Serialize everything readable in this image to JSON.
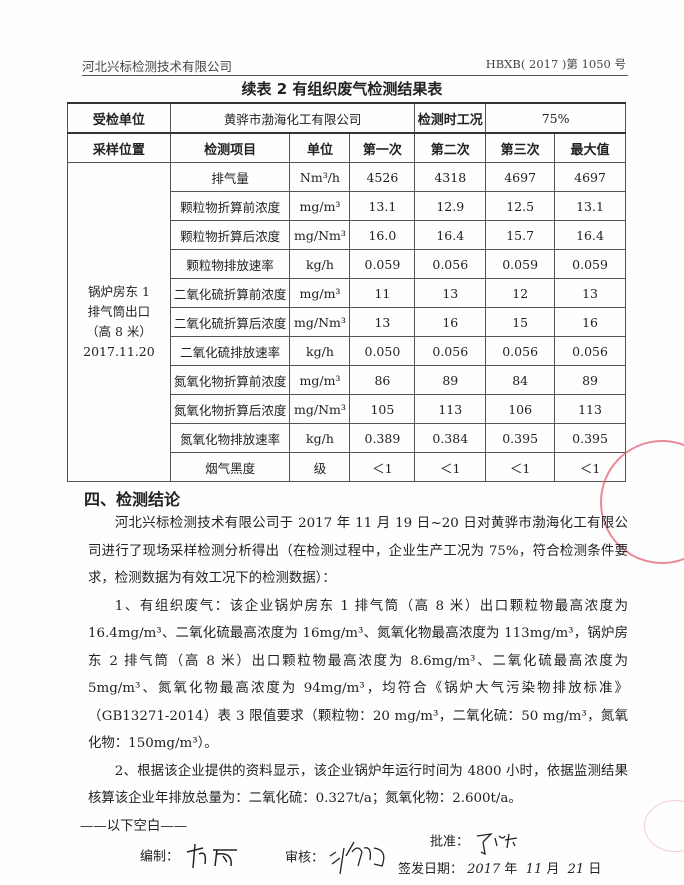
{
  "header": {
    "company": "河北兴标检测技术有限公司",
    "report_no": "HBXB( 2017 )第 1050 号"
  },
  "title": "续表 2   有组织废气检测结果表",
  "table": {
    "unit_label": "受检单位",
    "unit_value": "黄骅市渤海化工有限公司",
    "condition_label": "检测时工况",
    "condition_value": "75%",
    "columns": [
      "采样位置",
      "检测项目",
      "单位",
      "第一次",
      "第二次",
      "第三次",
      "最大值"
    ],
    "location": [
      "锅炉房东 1",
      "排气筒出口",
      "（高 8 米）",
      "2017.11.20"
    ],
    "rows": [
      [
        "排气量",
        "Nm³/h",
        "4526",
        "4318",
        "4697",
        "4697"
      ],
      [
        "颗粒物折算前浓度",
        "mg/m³",
        "13.1",
        "12.9",
        "12.5",
        "13.1"
      ],
      [
        "颗粒物折算后浓度",
        "mg/Nm³",
        "16.0",
        "16.4",
        "15.7",
        "16.4"
      ],
      [
        "颗粒物排放速率",
        "kg/h",
        "0.059",
        "0.056",
        "0.059",
        "0.059"
      ],
      [
        "二氧化硫折算前浓度",
        "mg/m³",
        "11",
        "13",
        "12",
        "13"
      ],
      [
        "二氧化硫折算后浓度",
        "mg/Nm³",
        "13",
        "16",
        "15",
        "16"
      ],
      [
        "二氧化硫排放速率",
        "kg/h",
        "0.050",
        "0.056",
        "0.056",
        "0.056"
      ],
      [
        "氮氧化物折算前浓度",
        "mg/m³",
        "86",
        "89",
        "84",
        "89"
      ],
      [
        "氮氧化物折算后浓度",
        "mg/Nm³",
        "105",
        "113",
        "106",
        "113"
      ],
      [
        "氮氧化物排放速率",
        "kg/h",
        "0.389",
        "0.384",
        "0.395",
        "0.395"
      ],
      [
        "烟气黑度",
        "级",
        "＜1",
        "＜1",
        "＜1",
        "＜1"
      ]
    ]
  },
  "conclusion": {
    "heading": "四、检测结论",
    "p1": "河北兴标检测技术有限公司于 2017 年 11 月 19 日~20 日对黄骅市渤海化工有限公司进行了现场采样检测分析得出（在检测过程中，企业生产工况为 75%，符合检测条件要求，检测数据为有效工况下的检测数据）：",
    "p2": "1、有组织废气：该企业锅炉房东 1 排气筒（高 8 米）出口颗粒物最高浓度为 16.4mg/m³、二氧化硫最高浓度为 16mg/m³、氮氧化物最高浓度为 113mg/m³，锅炉房东 2 排气筒（高 8 米）出口颗粒物最高浓度为 8.6mg/m³、二氧化硫最高浓度为 5mg/m³、氮氧化物最高浓度为 94mg/m³，均符合《锅炉大气污染物排放标准》（GB13271-2014）表 3 限值要求（颗粒物：20 mg/m³，二氧化硫：50 mg/m³，氮氧化物：150mg/m³）。",
    "p3": "2、根据该企业提供的资料显示，该企业锅炉年运行时间为 4800 小时，依据监测结果核算该企业年排放总量为：二氧化硫：0.327t/a；氮氧化物：2.600t/a。",
    "blank": "——以下空白——"
  },
  "signatures": {
    "prepared_label": "编制：",
    "reviewed_label": "审核：",
    "approved_label": "批准：",
    "date_label": "签发日期：",
    "year": "2017",
    "year_unit": "年",
    "month": "11",
    "month_unit": "月",
    "day": "21",
    "day_unit": "日"
  },
  "colors": {
    "stamp": "#e05a6a"
  }
}
